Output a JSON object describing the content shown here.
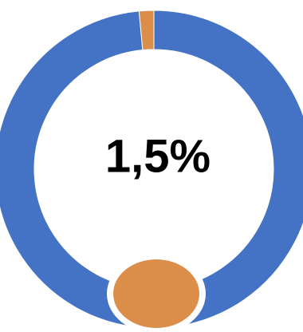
{
  "chart_data": {
    "type": "pie",
    "variant": "donut",
    "center_label": "1,5%",
    "slices": [
      {
        "value": 1.5,
        "color": "#DB8E4A"
      },
      {
        "value": 98.5,
        "color": "#4472C4"
      }
    ],
    "marker_color": "#DB8E4A",
    "start_angle_deg": 0,
    "direction": "counterclockwise",
    "legend": "none"
  }
}
